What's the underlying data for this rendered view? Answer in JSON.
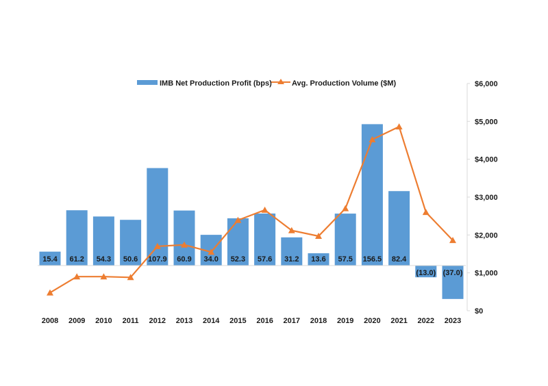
{
  "colors": {
    "bar": "#5b9bd5",
    "line": "#ed7d31",
    "axis": "#d9d9d9",
    "text": "#1a1a1a"
  },
  "chart_data": {
    "type": "bar",
    "title": "",
    "categories": [
      "2008",
      "2009",
      "2010",
      "2011",
      "2012",
      "2013",
      "2014",
      "2015",
      "2016",
      "2017",
      "2018",
      "2019",
      "2020",
      "2021",
      "2022",
      "2023"
    ],
    "series": [
      {
        "name": "IMB Net Production Profit (bps)",
        "type": "bar",
        "axis": "left-hidden",
        "values": [
          15.4,
          61.2,
          54.3,
          50.6,
          107.9,
          60.9,
          34.0,
          52.3,
          57.6,
          31.2,
          13.6,
          57.5,
          156.5,
          82.4,
          -13.0,
          -37.0
        ],
        "labels": [
          "15.4",
          "61.2",
          "54.3",
          "50.6",
          "107.9",
          "60.9",
          "34.0",
          "52.3",
          "57.6",
          "31.2",
          "13.6",
          "57.5",
          "156.5",
          "82.4",
          "(13.0)",
          "(37.0)"
        ]
      },
      {
        "name": "Avg. Production Volume ($M)",
        "type": "line",
        "marker": "triangle",
        "axis": "right",
        "values": [
          475,
          900,
          900,
          880,
          1700,
          1740,
          1550,
          2390,
          2660,
          2120,
          1970,
          2700,
          4520,
          4860,
          2600,
          1860
        ]
      }
    ],
    "y2": {
      "ticks": [
        0,
        1000,
        2000,
        3000,
        4000,
        5000,
        6000
      ],
      "tick_labels": [
        "$0",
        "$1,000",
        "$2,000",
        "$3,000",
        "$4,000",
        "$5,000",
        "$6,000"
      ],
      "ylim": [
        0,
        6000
      ]
    },
    "y1_range": [
      -50,
      200
    ],
    "legend": "top",
    "grid": false,
    "xlabel": "",
    "ylabel": ""
  }
}
